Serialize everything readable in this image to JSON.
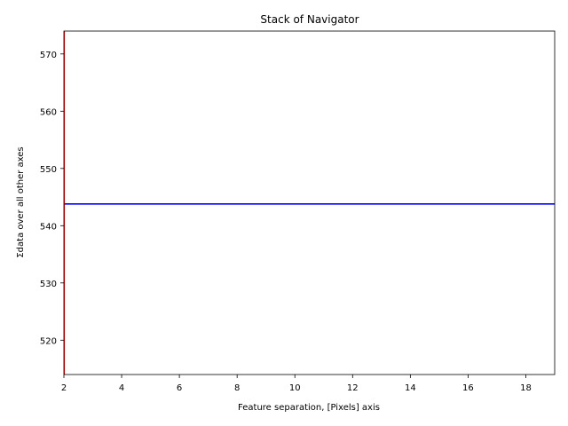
{
  "chart_data": {
    "type": "line",
    "title": "Stack of  Navigator",
    "xlabel": "Feature separation, [Pixels] axis",
    "ylabel": "Σdata over all other axes",
    "xlim": [
      2,
      19
    ],
    "ylim": [
      514,
      574
    ],
    "xticks": [
      2,
      4,
      6,
      8,
      10,
      12,
      14,
      16,
      18
    ],
    "yticks": [
      520,
      530,
      540,
      550,
      560,
      570
    ],
    "grid": false,
    "series": [
      {
        "x": [
          2,
          19
        ],
        "y": [
          543.8,
          543.8
        ],
        "color": "#0000ff"
      }
    ],
    "markers": [
      {
        "type": "vertical-line",
        "x": 2,
        "color": "#ff0000"
      }
    ]
  }
}
